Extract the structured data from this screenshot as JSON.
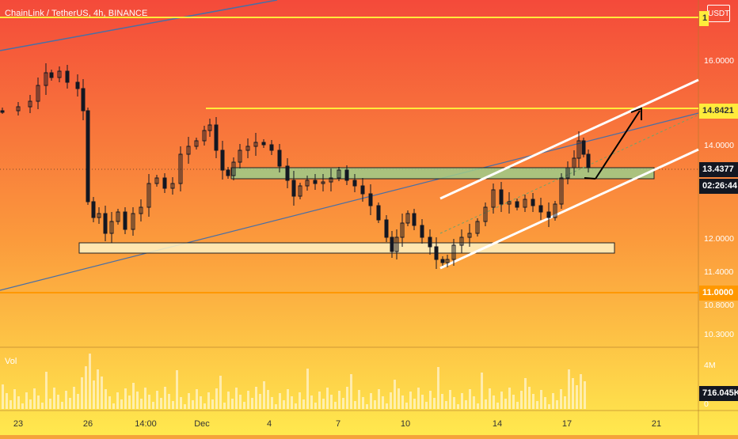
{
  "header": {
    "title": "ChainLink / TetherUS, 4h, BINANCE",
    "currency_button": "USDT",
    "volume_label": "Vol"
  },
  "price_axis": {
    "labels": [
      "16.0000",
      "14.0000",
      "12.0000",
      "11.4000",
      "10.8000",
      "10.3000"
    ],
    "badges": {
      "top": {
        "text": "1",
        "bg": "#ffeb3b",
        "fg": "#333333"
      },
      "resistance": {
        "text": "14.8421",
        "bg": "#ffeb3b",
        "fg": "#333333"
      },
      "last_price": {
        "text": "13.4377",
        "bg": "#131722",
        "fg": "#ffffff"
      },
      "countdown": {
        "text": "02:26:44",
        "bg": "#131722",
        "fg": "#ffffff"
      },
      "support": {
        "text": "11.0000",
        "bg": "#ff9800",
        "fg": "#ffffff"
      }
    }
  },
  "volume_axis": {
    "labels": [
      "4M",
      "0"
    ],
    "badge": {
      "text": "716.045K",
      "bg": "#131722",
      "fg": "#ffffff"
    }
  },
  "time_axis": {
    "labels": [
      "23",
      "26",
      "14:00",
      "Dec",
      "4",
      "7",
      "10",
      "14",
      "17",
      "21"
    ]
  },
  "colors": {
    "bg_top": "#f44a3a",
    "bg_bottom": "#ffe94e",
    "candle": "#131722",
    "volume": "#ffffff",
    "resistance_line": "#ffeb3b",
    "support_line": "#ff9800",
    "channel": "#ffffff",
    "demand_zone": "#9ccc8a",
    "lower_zone": "#fff3c4",
    "trendline": "#4a6fa5"
  }
}
